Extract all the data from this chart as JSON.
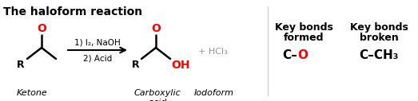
{
  "title": "The haloform reaction",
  "title_fontsize": 10,
  "bg_color": "#ffffff",
  "ketone_label": "Ketone",
  "carboxylic_label": "Carboxylic\nacid",
  "iodoform_label": "Iodoform",
  "reagents_line1": "1) I₂, NaOH",
  "reagents_line2": "2) Acid",
  "plus_hcl": "+ HCl₃",
  "key_formed_title_l1": "Key bonds",
  "key_formed_title_l2": "formed",
  "key_broken_title_l1": "Key bonds",
  "key_broken_title_l2": "broken",
  "key_formed_bond_left": "C–",
  "key_formed_bond_right": "O",
  "key_broken_bond": "C–CH₃",
  "red_color": "#ff0000",
  "black_color": "#000000",
  "gray_color": "#999999"
}
